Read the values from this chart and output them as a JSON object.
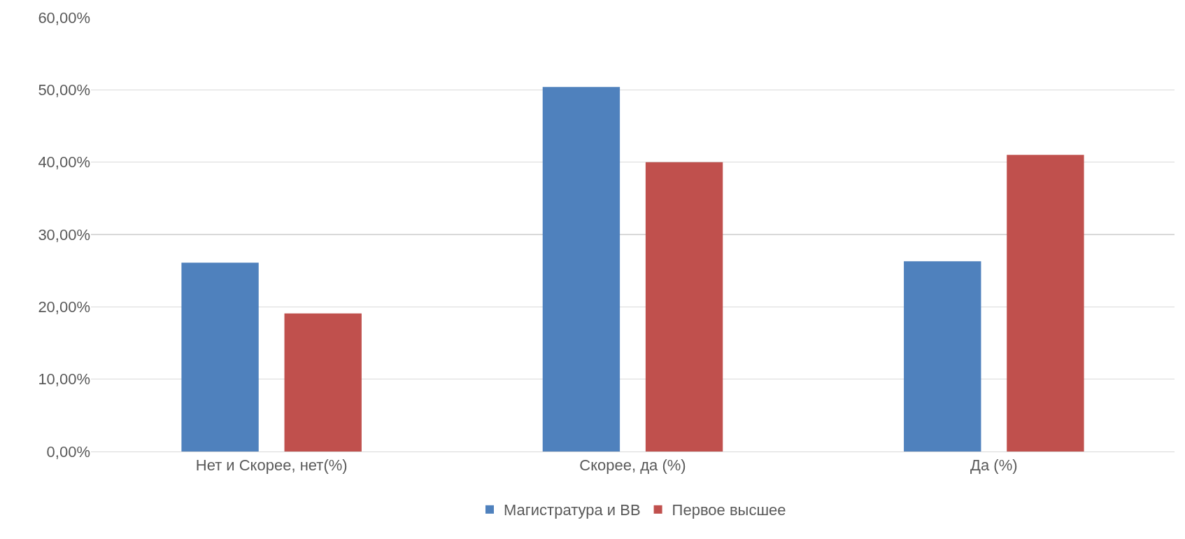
{
  "chart_data": {
    "type": "bar",
    "categories": [
      "Нет и Скорее, нет(%)",
      "Скорее, да (%)",
      "Да (%)"
    ],
    "series": [
      {
        "name": "Магистратура и ВВ",
        "color": "#4f81bd",
        "values": [
          26.1,
          50.4,
          26.3
        ]
      },
      {
        "name": "Первое высшее",
        "color": "#c0504d",
        "values": [
          19.1,
          40.0,
          41.0
        ]
      }
    ],
    "ylim": [
      0,
      60
    ],
    "yticks": [
      {
        "value": 0,
        "label": "0,00%"
      },
      {
        "value": 10,
        "label": "10,00%"
      },
      {
        "value": 20,
        "label": "20,00%"
      },
      {
        "value": 30,
        "label": "30,00%"
      },
      {
        "value": 40,
        "label": "40,00%"
      },
      {
        "value": 50,
        "label": "50,00%"
      },
      {
        "value": 60,
        "label": "60,00%"
      }
    ],
    "grid": "y",
    "legend": "bottom"
  }
}
